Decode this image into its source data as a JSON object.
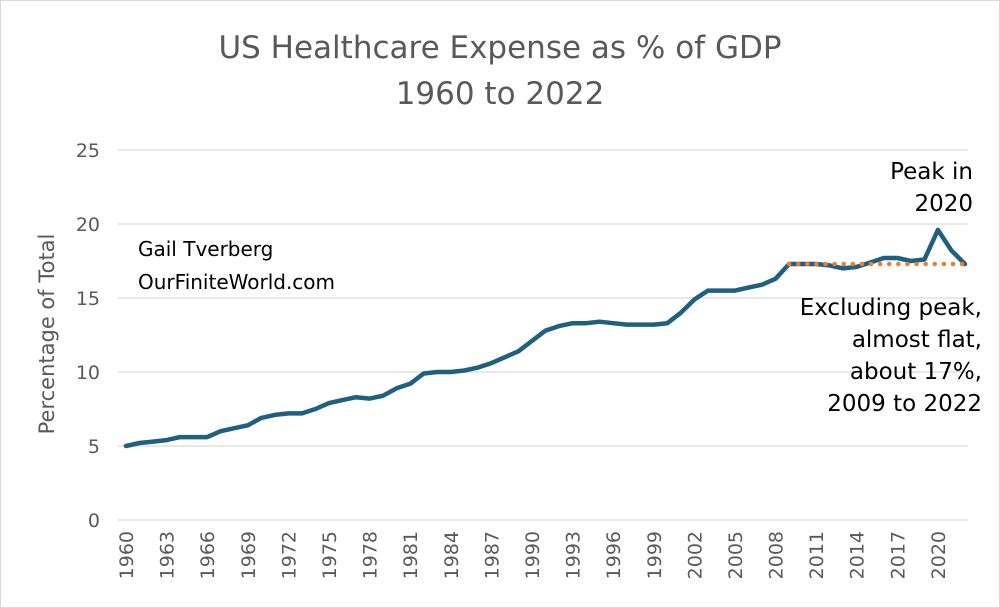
{
  "chart_data": {
    "type": "line",
    "title": "US Healthcare Expense as % of GDP",
    "subtitle": "1960 to 2022",
    "ylabel": "Percentage of Total",
    "xlabel": "",
    "ylim": [
      0,
      25
    ],
    "yticks": [
      0,
      5,
      10,
      15,
      20,
      25
    ],
    "xlim": [
      1960,
      2022
    ],
    "xtick_labels": [
      "1960",
      "1963",
      "1966",
      "1969",
      "1972",
      "1975",
      "1978",
      "1981",
      "1984",
      "1987",
      "1990",
      "1993",
      "1996",
      "1999",
      "2002",
      "2005",
      "2008",
      "2011",
      "2014",
      "2017",
      "2020"
    ],
    "grid": true,
    "series": [
      {
        "x": [
          1960,
          1961,
          1962,
          1963,
          1964,
          1965,
          1966,
          1967,
          1968,
          1969,
          1970,
          1971,
          1972,
          1973,
          1974,
          1975,
          1976,
          1977,
          1978,
          1979,
          1980,
          1981,
          1982,
          1983,
          1984,
          1985,
          1986,
          1987,
          1988,
          1989,
          1990,
          1991,
          1992,
          1993,
          1994,
          1995,
          1996,
          1997,
          1998,
          1999,
          2000,
          2001,
          2002,
          2003,
          2004,
          2005,
          2006,
          2007,
          2008,
          2009,
          2010,
          2011,
          2012,
          2013,
          2014,
          2015,
          2016,
          2017,
          2018,
          2019,
          2020,
          2021,
          2022
        ],
        "values": [
          5.0,
          5.2,
          5.3,
          5.4,
          5.6,
          5.6,
          5.6,
          6.0,
          6.2,
          6.4,
          6.9,
          7.1,
          7.2,
          7.2,
          7.5,
          7.9,
          8.1,
          8.3,
          8.2,
          8.4,
          8.9,
          9.2,
          9.9,
          10.0,
          10.0,
          10.1,
          10.3,
          10.6,
          11.0,
          11.4,
          12.1,
          12.8,
          13.1,
          13.3,
          13.3,
          13.4,
          13.3,
          13.2,
          13.2,
          13.2,
          13.3,
          14.0,
          14.9,
          15.5,
          15.5,
          15.5,
          15.7,
          15.9,
          16.3,
          17.3,
          17.3,
          17.3,
          17.2,
          17.0,
          17.1,
          17.4,
          17.7,
          17.7,
          17.5,
          17.6,
          19.6,
          18.2,
          17.3
        ],
        "color": "#1f5f7f"
      },
      {
        "x": [
          2009,
          2022
        ],
        "values": [
          17.3,
          17.3
        ],
        "color": "#ed7d31",
        "style": "dotted"
      }
    ],
    "annotations": [
      "Gail Tverberg",
      "OurFiniteWorld.com",
      "Peak in",
      "2020",
      "Excluding peak,",
      "almost flat,",
      "about 17%,",
      "2009 to 2022"
    ]
  }
}
